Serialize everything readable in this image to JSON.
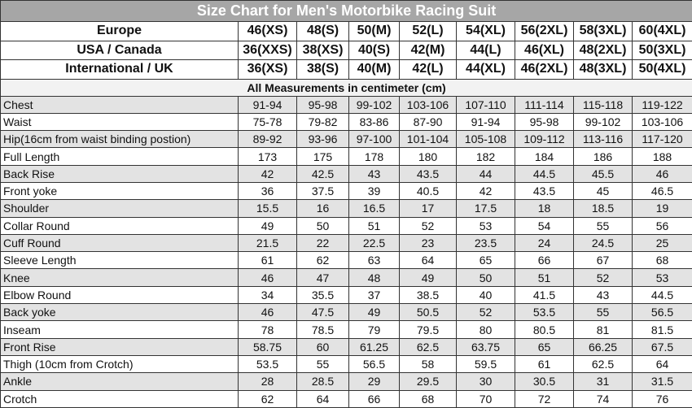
{
  "title": "Size Chart for Men's Motorbike Racing Suit",
  "size_rows": [
    {
      "label": "Europe",
      "values": [
        "46(XS)",
        "48(S)",
        "50(M)",
        "52(L)",
        "54(XL)",
        "56(2XL)",
        "58(3XL)",
        "60(4XL)"
      ]
    },
    {
      "label": "USA / Canada",
      "values": [
        "36(XXS)",
        "38(XS)",
        "40(S)",
        "42(M)",
        "44(L)",
        "46(XL)",
        "48(2XL)",
        "50(3XL)"
      ]
    },
    {
      "label": "International / UK",
      "values": [
        "36(XS)",
        "38(S)",
        "40(M)",
        "42(L)",
        "44(XL)",
        "46(2XL)",
        "48(3XL)",
        "50(4XL)"
      ]
    }
  ],
  "units_note": "All Measurements in centimeter (cm)",
  "measurements": [
    {
      "label": "Chest",
      "values": [
        "91-94",
        "95-98",
        "99-102",
        "103-106",
        "107-110",
        "111-114",
        "115-118",
        "119-122"
      ]
    },
    {
      "label": "Waist",
      "values": [
        "75-78",
        "79-82",
        "83-86",
        "87-90",
        "91-94",
        "95-98",
        "99-102",
        "103-106"
      ]
    },
    {
      "label": "Hip(16cm from waist binding postion)",
      "values": [
        "89-92",
        "93-96",
        "97-100",
        "101-104",
        "105-108",
        "109-112",
        "113-116",
        "117-120"
      ]
    },
    {
      "label": "Full Length",
      "values": [
        "173",
        "175",
        "178",
        "180",
        "182",
        "184",
        "186",
        "188"
      ]
    },
    {
      "label": "Back Rise",
      "values": [
        "42",
        "42.5",
        "43",
        "43.5",
        "44",
        "44.5",
        "45.5",
        "46"
      ]
    },
    {
      "label": "Front yoke",
      "values": [
        "36",
        "37.5",
        "39",
        "40.5",
        "42",
        "43.5",
        "45",
        "46.5"
      ]
    },
    {
      "label": "Shoulder",
      "values": [
        "15.5",
        "16",
        "16.5",
        "17",
        "17.5",
        "18",
        "18.5",
        "19"
      ]
    },
    {
      "label": "Collar Round",
      "values": [
        "49",
        "50",
        "51",
        "52",
        "53",
        "54",
        "55",
        "56"
      ]
    },
    {
      "label": "Cuff Round",
      "values": [
        "21.5",
        "22",
        "22.5",
        "23",
        "23.5",
        "24",
        "24.5",
        "25"
      ]
    },
    {
      "label": "Sleeve Length",
      "values": [
        "61",
        "62",
        "63",
        "64",
        "65",
        "66",
        "67",
        "68"
      ]
    },
    {
      "label": "Knee",
      "values": [
        "46",
        "47",
        "48",
        "49",
        "50",
        "51",
        "52",
        "53"
      ]
    },
    {
      "label": "Elbow Round",
      "values": [
        "34",
        "35.5",
        "37",
        "38.5",
        "40",
        "41.5",
        "43",
        "44.5"
      ]
    },
    {
      "label": "Back yoke",
      "values": [
        "46",
        "47.5",
        "49",
        "50.5",
        "52",
        "53.5",
        "55",
        "56.5"
      ]
    },
    {
      "label": "Inseam",
      "values": [
        "78",
        "78.5",
        "79",
        "79.5",
        "80",
        "80.5",
        "81",
        "81.5"
      ]
    },
    {
      "label": "Front Rise",
      "values": [
        "58.75",
        "60",
        "61.25",
        "62.5",
        "63.75",
        "65",
        "66.25",
        "67.5"
      ]
    },
    {
      "label": "Thigh (10cm from Crotch)",
      "values": [
        "53.5",
        "55",
        "56.5",
        "58",
        "59.5",
        "61",
        "62.5",
        "64"
      ]
    },
    {
      "label": "Ankle",
      "values": [
        "28",
        "28.5",
        "29",
        "29.5",
        "30",
        "30.5",
        "31",
        "31.5"
      ]
    },
    {
      "label": "Crotch",
      "values": [
        "62",
        "64",
        "66",
        "68",
        "70",
        "72",
        "74",
        "76"
      ]
    }
  ],
  "colors": {
    "title_bg": "#a6a6a6",
    "shaded_row": "#e3e3e3",
    "border": "#333333"
  }
}
